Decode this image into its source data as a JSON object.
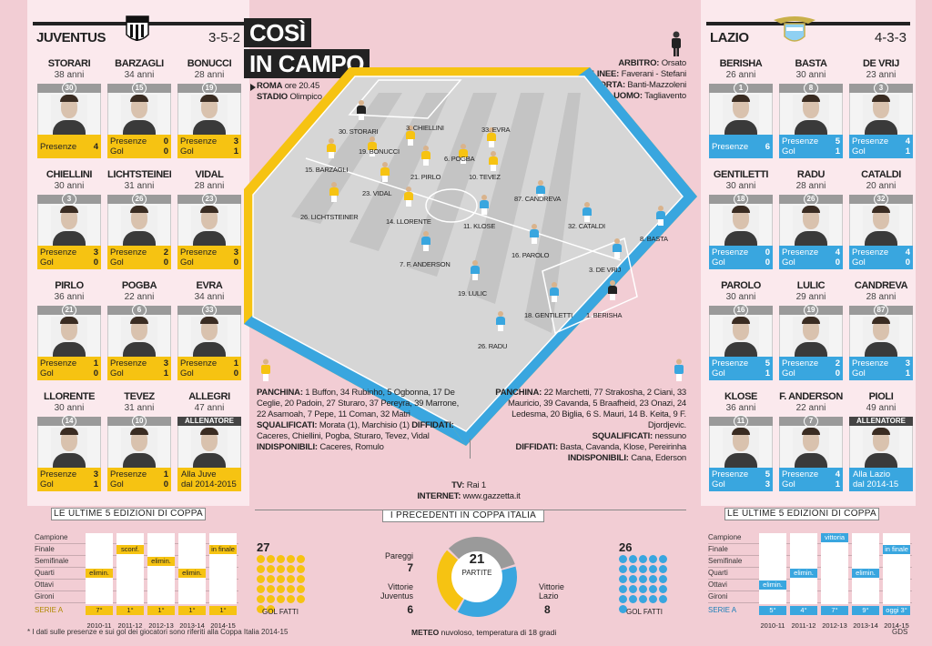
{
  "title": {
    "line1": "COSÌ",
    "line2": "IN CAMPO"
  },
  "match": {
    "city": "ROMA",
    "time": "ore 20.45",
    "stadium_label": "STADIO",
    "stadium": "Olimpico"
  },
  "officials": [
    {
      "role": "ARBITRO:",
      "name": "Orsato"
    },
    {
      "role": "GUARDALINEE:",
      "name": "Faverani - Stefani"
    },
    {
      "role": "GIUDICI DI PORTA:",
      "name": "Banti-Mazzoleni"
    },
    {
      "role": "QUARTO UOMO:",
      "name": "Tagliavento"
    }
  ],
  "colors": {
    "juve": "#f6c312",
    "lazio": "#39a6df",
    "pink": "#f2cdd4"
  },
  "juventus": {
    "name": "JUVENTUS",
    "formation": "3-5-2",
    "players": [
      {
        "name": "STORARI",
        "age": "38 anni",
        "num": "30",
        "s1": "Presenze",
        "v1": "4",
        "s2": "",
        "v2": ""
      },
      {
        "name": "BARZAGLI",
        "age": "34 anni",
        "num": "15",
        "s1": "Presenze",
        "v1": "0",
        "s2": "Gol",
        "v2": "0"
      },
      {
        "name": "BONUCCI",
        "age": "28 anni",
        "num": "19",
        "s1": "Presenze",
        "v1": "3",
        "s2": "Gol",
        "v2": "1"
      },
      {
        "name": "CHIELLINI",
        "age": "30 anni",
        "num": "3",
        "s1": "Presenze",
        "v1": "3",
        "s2": "Gol",
        "v2": "0"
      },
      {
        "name": "LICHTSTEINER",
        "age": "31 anni",
        "num": "26",
        "s1": "Presenze",
        "v1": "2",
        "s2": "Gol",
        "v2": "0"
      },
      {
        "name": "VIDAL",
        "age": "28 anni",
        "num": "23",
        "s1": "Presenze",
        "v1": "3",
        "s2": "Gol",
        "v2": "0"
      },
      {
        "name": "PIRLO",
        "age": "36 anni",
        "num": "21",
        "s1": "Presenze",
        "v1": "1",
        "s2": "Gol",
        "v2": "0"
      },
      {
        "name": "POGBA",
        "age": "22 anni",
        "num": "6",
        "s1": "Presenze",
        "v1": "3",
        "s2": "Gol",
        "v2": "1"
      },
      {
        "name": "EVRA",
        "age": "34 anni",
        "num": "33",
        "s1": "Presenze",
        "v1": "1",
        "s2": "Gol",
        "v2": "0"
      },
      {
        "name": "LLORENTE",
        "age": "30 anni",
        "num": "14",
        "s1": "Presenze",
        "v1": "3",
        "s2": "Gol",
        "v2": "1"
      },
      {
        "name": "TEVEZ",
        "age": "31 anni",
        "num": "10",
        "s1": "Presenze",
        "v1": "1",
        "s2": "Gol",
        "v2": "0"
      }
    ],
    "coach": {
      "name": "ALLEGRI",
      "age": "47 anni",
      "label": "ALLENATORE",
      "l1": "Alla Juve",
      "l2": "dal 2014-2015"
    }
  },
  "lazio": {
    "name": "LAZIO",
    "formation": "4-3-3",
    "players": [
      {
        "name": "BERISHA",
        "age": "26 anni",
        "num": "1",
        "s1": "Presenze",
        "v1": "6",
        "s2": "",
        "v2": ""
      },
      {
        "name": "BASTA",
        "age": "30 anni",
        "num": "8",
        "s1": "Presenze",
        "v1": "5",
        "s2": "Gol",
        "v2": "1"
      },
      {
        "name": "DE VRIJ",
        "age": "23 anni",
        "num": "3",
        "s1": "Presenze",
        "v1": "4",
        "s2": "Gol",
        "v2": "1"
      },
      {
        "name": "GENTILETTI",
        "age": "30 anni",
        "num": "18",
        "s1": "Presenze",
        "v1": "0",
        "s2": "Gol",
        "v2": "0"
      },
      {
        "name": "RADU",
        "age": "28 anni",
        "num": "26",
        "s1": "Presenze",
        "v1": "4",
        "s2": "Gol",
        "v2": "0"
      },
      {
        "name": "CATALDI",
        "age": "20 anni",
        "num": "32",
        "s1": "Presenze",
        "v1": "4",
        "s2": "Gol",
        "v2": "0"
      },
      {
        "name": "PAROLO",
        "age": "30 anni",
        "num": "16",
        "s1": "Presenze",
        "v1": "5",
        "s2": "Gol",
        "v2": "1"
      },
      {
        "name": "LULIC",
        "age": "29 anni",
        "num": "19",
        "s1": "Presenze",
        "v1": "2",
        "s2": "Gol",
        "v2": "0"
      },
      {
        "name": "CANDREVA",
        "age": "28 anni",
        "num": "87",
        "s1": "Presenze",
        "v1": "3",
        "s2": "Gol",
        "v2": "1"
      },
      {
        "name": "KLOSE",
        "age": "36 anni",
        "num": "11",
        "s1": "Presenze",
        "v1": "5",
        "s2": "Gol",
        "v2": "3"
      },
      {
        "name": "F. ANDERSON",
        "age": "22 anni",
        "num": "7",
        "s1": "Presenze",
        "v1": "4",
        "s2": "Gol",
        "v2": "1"
      }
    ],
    "coach": {
      "name": "PIOLI",
      "age": "49 anni",
      "label": "ALLENATORE",
      "l1": "Alla Lazio",
      "l2": "dal 2014-15"
    }
  },
  "pitch_juve": [
    {
      "label": "30. STORARI",
      "gk": true
    },
    {
      "label": "3. CHIELLINI"
    },
    {
      "label": "19. BONUCCI"
    },
    {
      "label": "33. EVRA"
    },
    {
      "label": "6. POGBA"
    },
    {
      "label": "15. BARZAGLI"
    },
    {
      "label": "21. PIRLO"
    },
    {
      "label": "10. TEVEZ"
    },
    {
      "label": "23. VIDAL"
    },
    {
      "label": "26. LICHTSTEINER"
    },
    {
      "label": "14. LLORENTE"
    }
  ],
  "pitch_lazio": [
    {
      "label": "87. CANDREVA"
    },
    {
      "label": "11. KLOSE"
    },
    {
      "label": "32. CATALDI"
    },
    {
      "label": "8. BASTA"
    },
    {
      "label": "7. F. ANDERSON"
    },
    {
      "label": "16. PAROLO"
    },
    {
      "label": "3. DE VRIJ"
    },
    {
      "label": "19. LULIC"
    },
    {
      "label": "18. GENTILETTI"
    },
    {
      "label": "1. BERISHA",
      "gk": true
    },
    {
      "label": "26. RADU"
    }
  ],
  "juve_info": {
    "bench_label": "PANCHINA:",
    "bench": "1 Buffon, 34 Rubinho, 5 Ogbonna, 17 De Ceglie, 20 Padoin, 27 Sturaro, 37 Pereyra, 39 Marrone, 22 Asamoah, 7 Pepe, 11 Coman, 32 Matri",
    "susp_label": "SQUALIFICATI:",
    "susp": "Morata (1), Marchisio (1)",
    "warn_label": "DIFFIDATI:",
    "warn": "Caceres, Chiellini, Pogba, Sturaro, Tevez, Vidal",
    "inj_label": "INDISPONIBILI:",
    "inj": "Caceres, Romulo"
  },
  "lazio_info": {
    "bench_label": "PANCHINA:",
    "bench": "22 Marchetti, 77 Strakosha, 2 Ciani, 33 Mauricio, 39 Cavanda, 5 Braafheid, 23 Onazi, 24 Ledesma, 20 Biglia, 6 S. Mauri, 14 B. Keita, 9 F. Djordjevic.",
    "susp_label": "SQUALIFICATI:",
    "susp": "nessuno",
    "warn_label": "DIFFIDATI:",
    "warn": "Basta, Cavanda, Klose, Pereirinha",
    "inj_label": "INDISPONIBILI:",
    "inj": "Cana, Ederson"
  },
  "broadcast": {
    "tv_label": "TV:",
    "tv": "Rai 1",
    "web_label": "INTERNET:",
    "web": "www.gazzetta.it"
  },
  "history": {
    "title": "LE ULTIME 5 EDIZIONI DI COPPA",
    "rows": [
      "Campione",
      "Finale",
      "Semifinale",
      "Quarti",
      "Ottavi",
      "Gironi"
    ],
    "serie_a": "SERIE A",
    "seasons": [
      "2010-11",
      "2011-12",
      "2012-13",
      "2013-14",
      "2014-15"
    ],
    "juve_cells": [
      {
        "row": 1,
        "col": 1,
        "text": "sconf."
      },
      {
        "row": 2,
        "col": 2,
        "text": "elimin."
      },
      {
        "row": 1,
        "col": 4,
        "text": "in finale"
      },
      {
        "row": 3,
        "col": 0,
        "text": "elimin."
      },
      {
        "row": 3,
        "col": 3,
        "text": "elimin."
      }
    ],
    "juve_serie_a": [
      "7°",
      "1°",
      "1°",
      "1°",
      "1°"
    ],
    "lazio_cells": [
      {
        "row": 0,
        "col": 2,
        "text": "vittoria"
      },
      {
        "row": 1,
        "col": 4,
        "text": "in finale"
      },
      {
        "row": 3,
        "col": 1,
        "text": "elimin."
      },
      {
        "row": 3,
        "col": 3,
        "text": "elimin."
      },
      {
        "row": 4,
        "col": 0,
        "text": "elimin."
      }
    ],
    "lazio_serie_a": [
      "5°",
      "4°",
      "7°",
      "9°",
      "oggi 3°"
    ]
  },
  "precedenti": {
    "title": "I PRECEDENTI IN COPPA ITALIA",
    "total": "21",
    "total_label": "PARTITE",
    "juve_label1": "Vittorie",
    "juve_label2": "Juventus",
    "juve": "6",
    "draw_label": "Pareggi",
    "draw": "7",
    "lazio_label1": "Vittorie",
    "lazio_label2": "Lazio",
    "lazio": "8",
    "juve_goals": "27",
    "lazio_goals": "26",
    "goals_label": "GOL FATTI"
  },
  "footnote": "* I dati sulle presenze e sui gol dei giocatori sono riferiti alla Coppa Italia 2014-15",
  "meteo_label": "METEO",
  "meteo": "nuvoloso, temperatura di 18 gradi",
  "source": "GDS"
}
